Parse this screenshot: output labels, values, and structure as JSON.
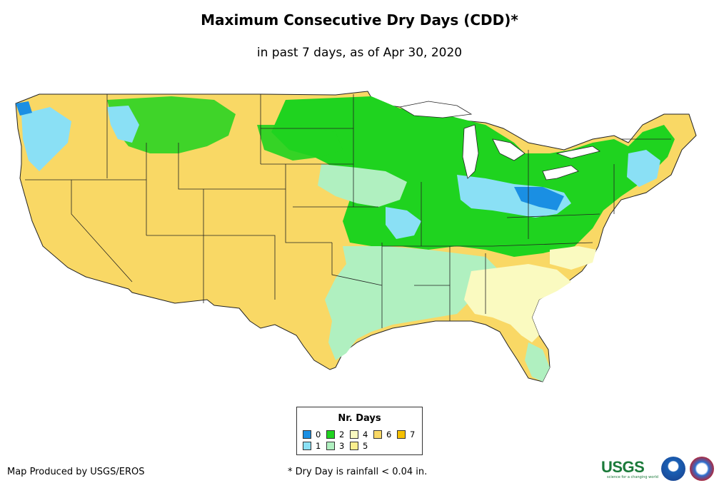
{
  "title": "Maximum Consecutive Dry Days (CDD)*",
  "subtitle": "in past 7 days, as of Apr 30, 2020",
  "legend": {
    "title": "Nr. Days",
    "items": [
      {
        "label": "0",
        "color": "#1a8fe3"
      },
      {
        "label": "1",
        "color": "#8ae0f5"
      },
      {
        "label": "2",
        "color": "#1fd31f"
      },
      {
        "label": "3",
        "color": "#b0f0c0"
      },
      {
        "label": "4",
        "color": "#fafac0"
      },
      {
        "label": "5",
        "color": "#fbef8e"
      },
      {
        "label": "6",
        "color": "#f9d865"
      },
      {
        "label": "7",
        "color": "#f5c000"
      }
    ]
  },
  "footer": {
    "credit": "Map Produced by USGS/EROS",
    "note": "* Dry Day is rainfall < 0.04 in."
  },
  "logos": {
    "usgs": "USGS",
    "usgs_tagline": "science for a changing world",
    "noaa_icon": "noaa-logo-icon",
    "nws_icon": "nws-logo-icon"
  }
}
